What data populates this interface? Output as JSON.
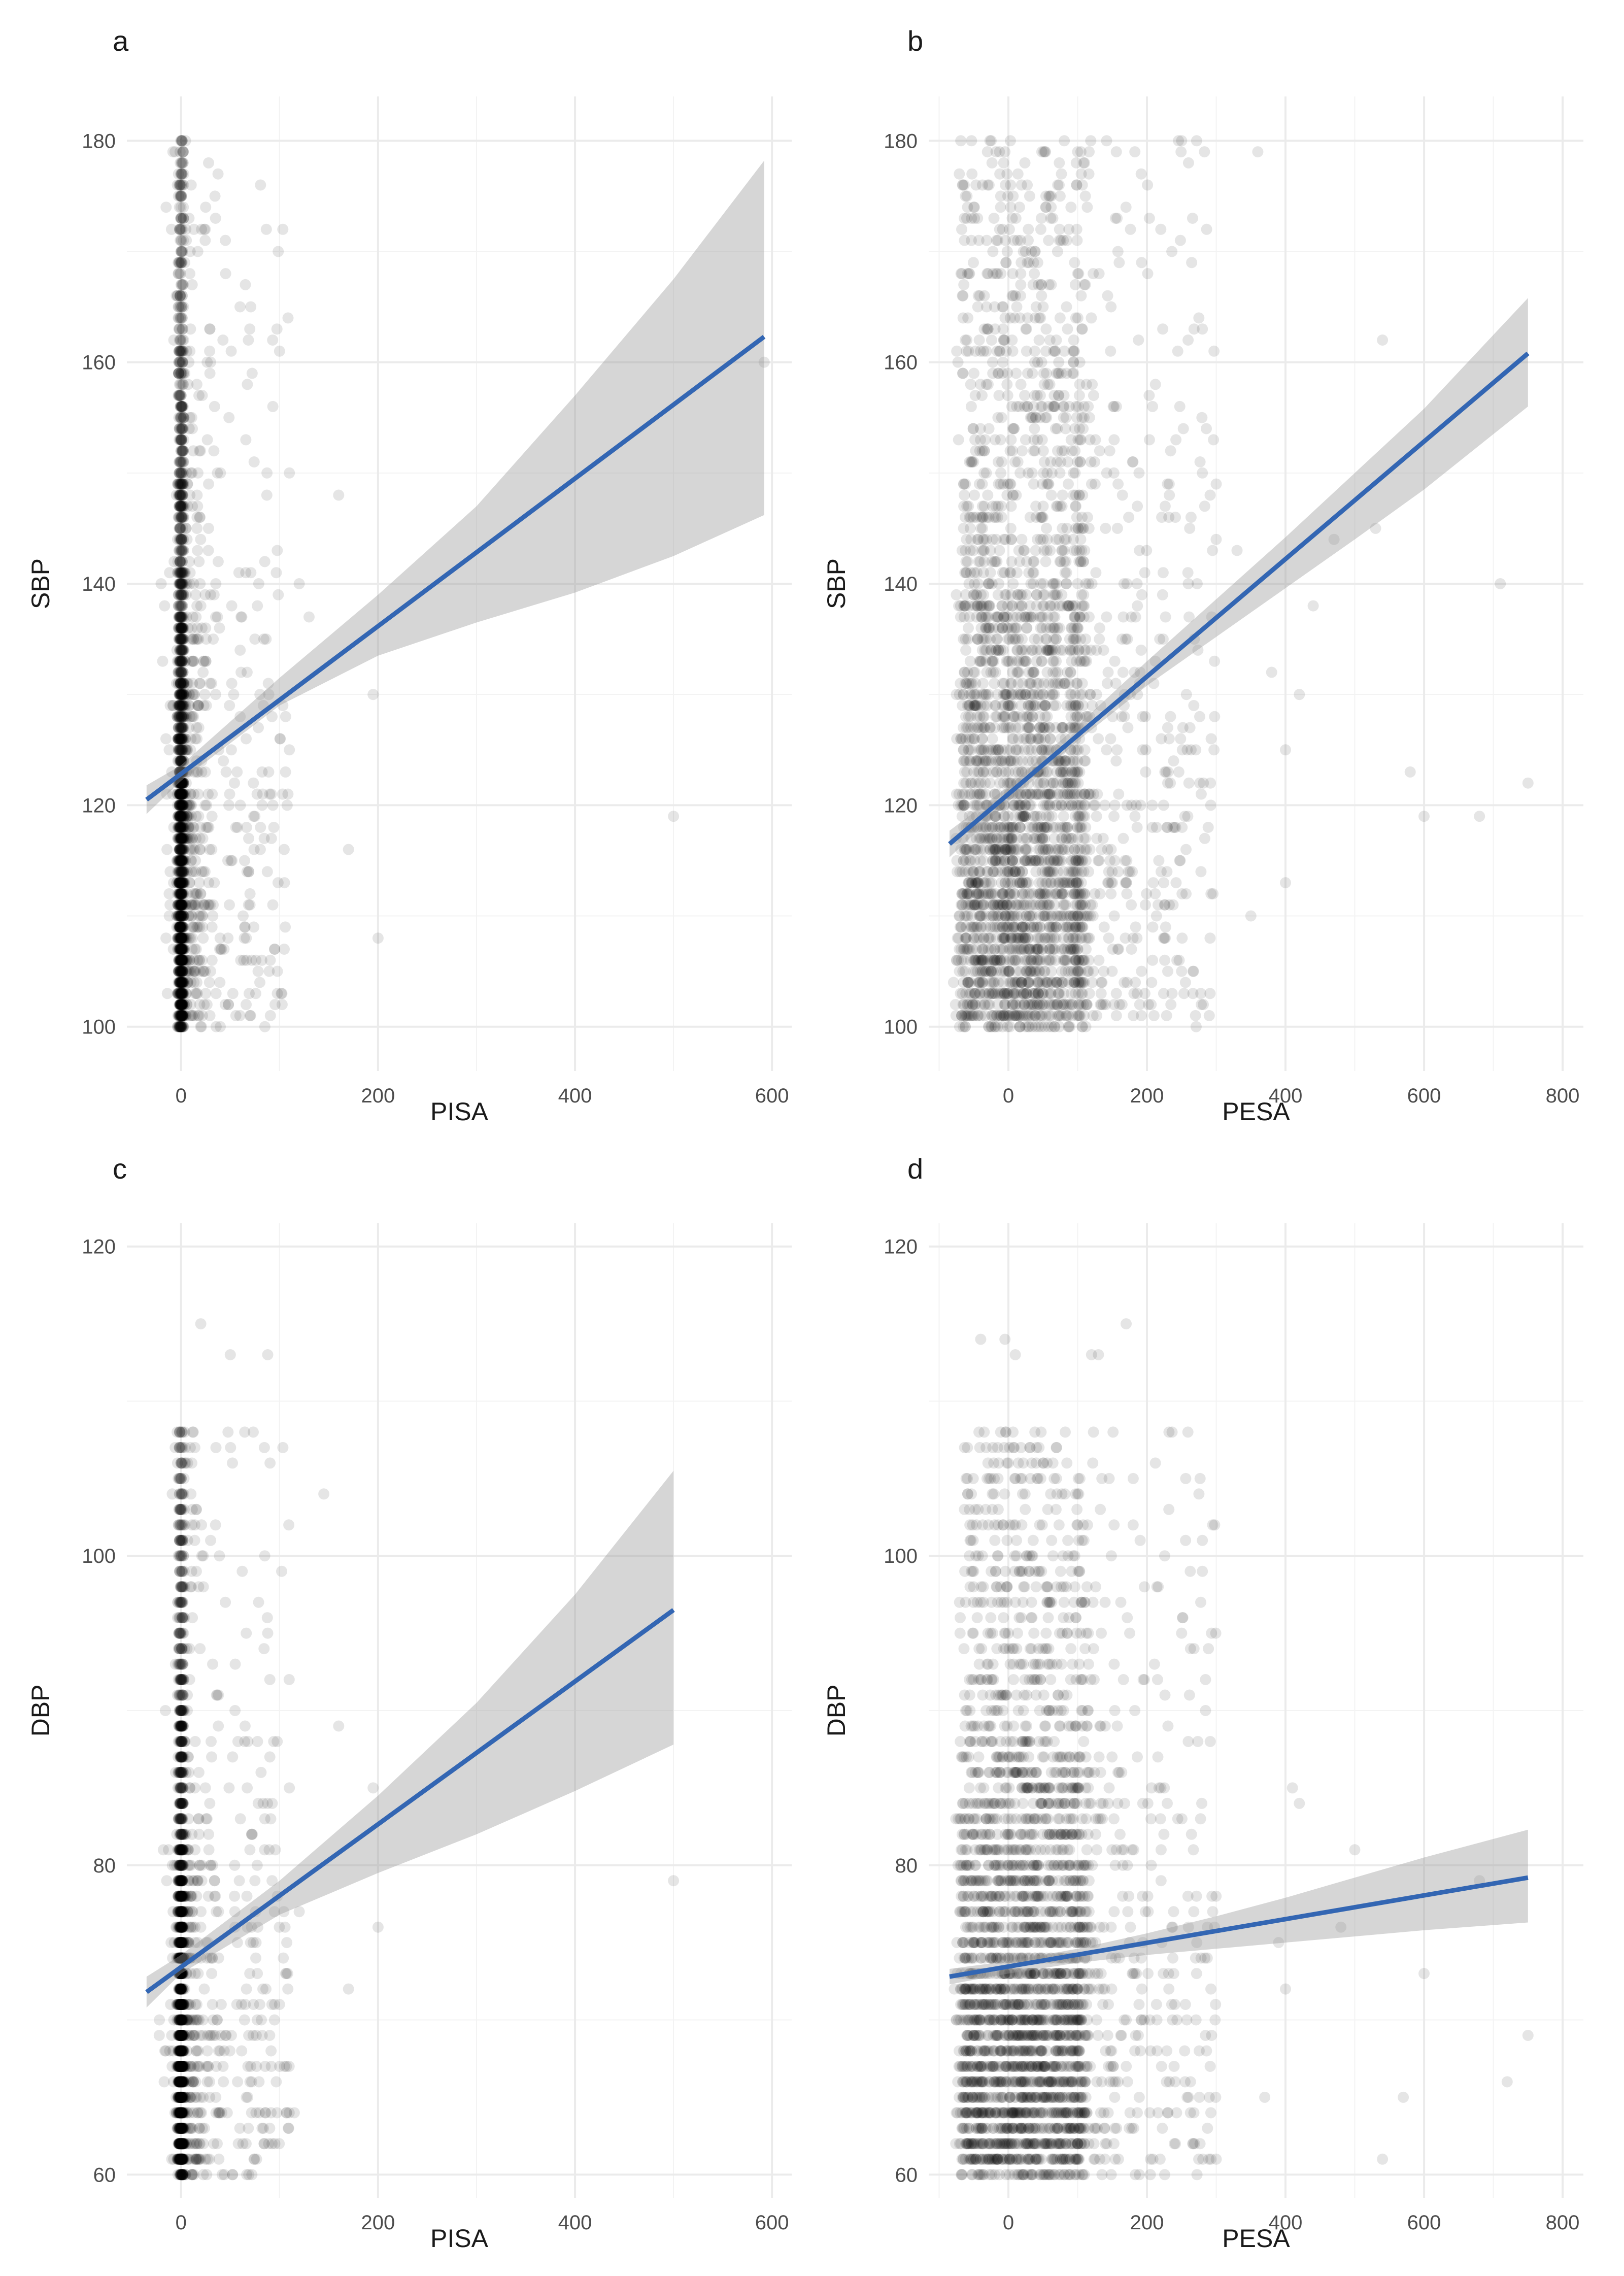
{
  "chart_data": [
    {
      "tag": "a",
      "type": "scatter",
      "xlabel": "PISA",
      "ylabel": "SBP",
      "xlim": [
        -55,
        620
      ],
      "ylim": [
        96,
        184
      ],
      "xticks": [
        0,
        200,
        400,
        600
      ],
      "yticks": [
        100,
        120,
        140,
        160,
        180
      ],
      "x_tick_labels": [
        "0",
        "200",
        "400",
        "600"
      ],
      "y_tick_labels": [
        "100",
        "120",
        "140",
        "160",
        "180"
      ],
      "grid": true,
      "fit": {
        "x_range": [
          -35,
          592
        ],
        "line": [
          [
            -35,
            120.5
          ],
          [
            592,
            162.3
          ]
        ],
        "ci_lower": [
          [
            -35,
            119.2
          ],
          [
            0,
            122.2
          ],
          [
            100,
            129.0
          ],
          [
            200,
            133.5
          ],
          [
            300,
            136.5
          ],
          [
            400,
            139.2
          ],
          [
            500,
            142.5
          ],
          [
            592,
            146.2
          ]
        ],
        "ci_upper": [
          [
            -35,
            121.8
          ],
          [
            0,
            123.6
          ],
          [
            100,
            131.5
          ],
          [
            200,
            139.0
          ],
          [
            300,
            147.0
          ],
          [
            400,
            157.0
          ],
          [
            500,
            167.5
          ],
          [
            592,
            178.2
          ]
        ]
      },
      "scatter_points": [
        [
          500,
          119
        ],
        [
          592,
          160
        ],
        [
          200,
          108
        ],
        [
          170,
          116
        ],
        [
          195,
          130
        ],
        [
          100,
          161
        ],
        [
          110,
          150
        ],
        [
          160,
          148
        ],
        [
          120,
          140
        ],
        [
          130,
          137
        ],
        [
          85,
          142
        ],
        [
          60,
          128
        ],
        [
          45,
          171
        ],
        [
          35,
          173
        ],
        [
          75,
          135
        ],
        [
          110,
          125
        ],
        [
          90,
          121
        ],
        [
          80,
          104
        ],
        [
          82,
          106
        ],
        [
          105,
          113
        ],
        [
          70,
          111
        ],
        [
          65,
          109
        ],
        [
          40,
          150
        ],
        [
          30,
          160
        ]
      ],
      "scatter_generated": {
        "n": 2300,
        "seed": 11,
        "x_model": "zero_heavy_tail",
        "x_min": -30,
        "x_max": 115,
        "y_model": "integer_column",
        "y_min": 100,
        "y_max": 180
      }
    },
    {
      "tag": "b",
      "type": "scatter",
      "xlabel": "PESA",
      "ylabel": "SBP",
      "xlim": [
        -115,
        830
      ],
      "ylim": [
        96,
        184
      ],
      "xticks": [
        0,
        200,
        400,
        600,
        800
      ],
      "yticks": [
        100,
        120,
        140,
        160,
        180
      ],
      "x_tick_labels": [
        "0",
        "200",
        "400",
        "600",
        "800"
      ],
      "y_tick_labels": [
        "100",
        "120",
        "140",
        "160",
        "180"
      ],
      "grid": true,
      "fit": {
        "x_range": [
          -85,
          750
        ],
        "line": [
          [
            -85,
            116.5
          ],
          [
            750,
            160.8
          ]
        ],
        "ci_lower": [
          [
            -85,
            115.3
          ],
          [
            0,
            120.3
          ],
          [
            100,
            125.8
          ],
          [
            200,
            130.8
          ],
          [
            300,
            135.2
          ],
          [
            400,
            139.6
          ],
          [
            500,
            144.0
          ],
          [
            600,
            148.5
          ],
          [
            750,
            156.0
          ]
        ],
        "ci_upper": [
          [
            -85,
            117.7
          ],
          [
            0,
            121.7
          ],
          [
            100,
            127.2
          ],
          [
            200,
            133.0
          ],
          [
            300,
            138.6
          ],
          [
            400,
            144.2
          ],
          [
            500,
            150.0
          ],
          [
            600,
            155.8
          ],
          [
            750,
            165.8
          ]
        ]
      },
      "scatter_points": [
        [
          750,
          122
        ],
        [
          710,
          140
        ],
        [
          680,
          119
        ],
        [
          600,
          119
        ],
        [
          580,
          123
        ],
        [
          540,
          162
        ],
        [
          530,
          145
        ],
        [
          470,
          144
        ],
        [
          440,
          138
        ],
        [
          420,
          130
        ],
        [
          400,
          125
        ],
        [
          400,
          113
        ],
        [
          360,
          179
        ],
        [
          350,
          110
        ],
        [
          300,
          149
        ],
        [
          280,
          150
        ],
        [
          260,
          178
        ],
        [
          250,
          180
        ],
        [
          220,
          172
        ],
        [
          270,
          101
        ],
        [
          250,
          105
        ],
        [
          230,
          122
        ],
        [
          380,
          132
        ],
        [
          330,
          143
        ]
      ],
      "scatter_generated": {
        "n": 2600,
        "seed": 23,
        "x_model": "band",
        "x_min": -70,
        "x_max": 110,
        "y_model": "integer_column",
        "y_min": 100,
        "y_max": 180,
        "extra_n": 420,
        "extra_x_min": 100,
        "extra_x_max": 300
      }
    },
    {
      "tag": "c",
      "type": "scatter",
      "xlabel": "PISA",
      "ylabel": "DBP",
      "xlim": [
        -55,
        620
      ],
      "ylim": [
        58.5,
        121.5
      ],
      "xticks": [
        0,
        200,
        400,
        600
      ],
      "yticks": [
        60,
        80,
        100,
        120
      ],
      "x_tick_labels": [
        "0",
        "200",
        "400",
        "600"
      ],
      "y_tick_labels": [
        "60",
        "80",
        "100",
        "120"
      ],
      "grid": true,
      "fit": {
        "x_range": [
          -35,
          500
        ],
        "line": [
          [
            -35,
            71.8
          ],
          [
            500,
            96.5
          ]
        ],
        "ci_lower": [
          [
            -35,
            70.8
          ],
          [
            0,
            73.0
          ],
          [
            100,
            76.8
          ],
          [
            200,
            79.5
          ],
          [
            300,
            82.0
          ],
          [
            400,
            84.8
          ],
          [
            500,
            87.8
          ]
        ],
        "ci_upper": [
          [
            -35,
            72.8
          ],
          [
            0,
            74.2
          ],
          [
            100,
            79.0
          ],
          [
            200,
            84.5
          ],
          [
            300,
            90.5
          ],
          [
            400,
            97.5
          ],
          [
            500,
            105.5
          ]
        ]
      },
      "scatter_points": [
        [
          500,
          79
        ],
        [
          200,
          76
        ],
        [
          195,
          85
        ],
        [
          170,
          72
        ],
        [
          145,
          104
        ],
        [
          160,
          89
        ],
        [
          120,
          77
        ],
        [
          115,
          64
        ],
        [
          110,
          85
        ],
        [
          105,
          67
        ],
        [
          95,
          71
        ],
        [
          90,
          63
        ],
        [
          88,
          113
        ],
        [
          50,
          113
        ],
        [
          70,
          66
        ],
        [
          75,
          79
        ],
        [
          65,
          89
        ],
        [
          30,
          101
        ],
        [
          35,
          102
        ],
        [
          20,
          115
        ],
        [
          45,
          97
        ],
        [
          55,
          93
        ]
      ],
      "scatter_generated": {
        "n": 2000,
        "seed": 37,
        "x_model": "zero_heavy_tail",
        "x_min": -30,
        "x_max": 115,
        "y_model": "integer_column",
        "y_min": 60,
        "y_max": 108
      }
    },
    {
      "tag": "d",
      "type": "scatter",
      "xlabel": "PESA",
      "ylabel": "DBP",
      "xlim": [
        -115,
        830
      ],
      "ylim": [
        58.5,
        121.5
      ],
      "xticks": [
        0,
        200,
        400,
        600,
        800
      ],
      "yticks": [
        60,
        80,
        100,
        120
      ],
      "x_tick_labels": [
        "0",
        "200",
        "400",
        "600",
        "800"
      ],
      "y_tick_labels": [
        "60",
        "80",
        "100",
        "120"
      ],
      "grid": true,
      "fit": {
        "x_range": [
          -85,
          750
        ],
        "line": [
          [
            -85,
            72.8
          ],
          [
            750,
            79.2
          ]
        ],
        "ci_lower": [
          [
            -85,
            72.3
          ],
          [
            0,
            73.0
          ],
          [
            100,
            73.7
          ],
          [
            200,
            74.2
          ],
          [
            300,
            74.6
          ],
          [
            400,
            75.0
          ],
          [
            500,
            75.4
          ],
          [
            600,
            75.8
          ],
          [
            750,
            76.3
          ]
        ],
        "ci_upper": [
          [
            -85,
            73.3
          ],
          [
            0,
            73.8
          ],
          [
            100,
            74.6
          ],
          [
            200,
            75.6
          ],
          [
            300,
            76.7
          ],
          [
            400,
            77.9
          ],
          [
            500,
            79.2
          ],
          [
            600,
            80.5
          ],
          [
            750,
            82.3
          ]
        ]
      },
      "scatter_points": [
        [
          750,
          69
        ],
        [
          720,
          66
        ],
        [
          680,
          79
        ],
        [
          600,
          73
        ],
        [
          570,
          65
        ],
        [
          540,
          61
        ],
        [
          500,
          81
        ],
        [
          480,
          76
        ],
        [
          420,
          84
        ],
        [
          410,
          85
        ],
        [
          400,
          72
        ],
        [
          390,
          75
        ],
        [
          370,
          65
        ],
        [
          300,
          61
        ],
        [
          280,
          99
        ],
        [
          280,
          101
        ],
        [
          275,
          104
        ],
        [
          250,
          95
        ],
        [
          170,
          115
        ],
        [
          130,
          113
        ],
        [
          120,
          113
        ],
        [
          -40,
          114
        ],
        [
          -5,
          114
        ],
        [
          10,
          113
        ]
      ],
      "scatter_generated": {
        "n": 2500,
        "seed": 53,
        "x_model": "band",
        "x_min": -70,
        "x_max": 110,
        "y_model": "integer_column",
        "y_min": 60,
        "y_max": 108,
        "extra_n": 400,
        "extra_x_min": 100,
        "extra_x_max": 300
      }
    }
  ]
}
